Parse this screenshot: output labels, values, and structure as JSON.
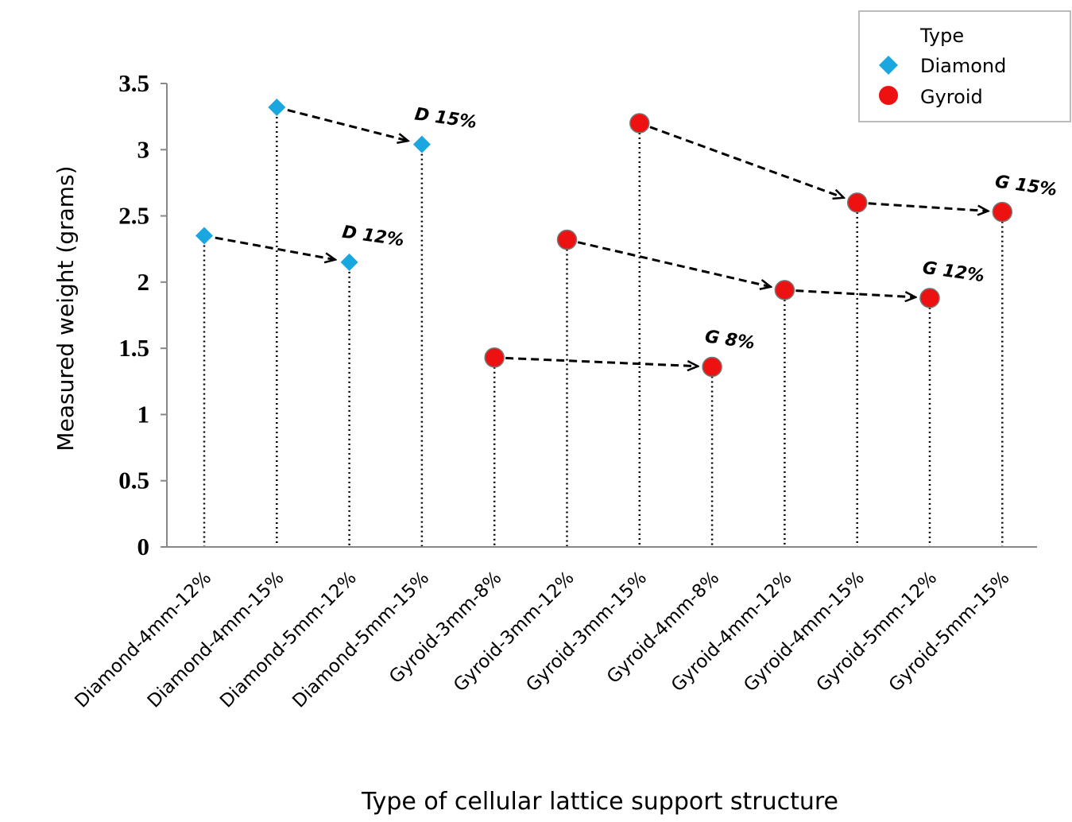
{
  "chart_data": {
    "type": "scatter",
    "title": "",
    "xlabel": "Type of cellular lattice support structure",
    "ylabel": "Measured weight (grams)",
    "ylim": [
      0,
      3.5
    ],
    "yticks": [
      "0",
      "0.5",
      "1",
      "1.5",
      "2",
      "2.5",
      "3",
      "3.5"
    ],
    "grid": false,
    "legend": {
      "title": "Type",
      "placement": "top-right"
    },
    "categories": [
      "Diamond-4mm-12%",
      "Diamond-4mm-15%",
      "Diamond-5mm-12%",
      "Diamond-5mm-15%",
      "Gyroid-3mm-8%",
      "Gyroid-3mm-12%",
      "Gyroid-3mm-15%",
      "Gyroid-4mm-8%",
      "Gyroid-4mm-12%",
      "Gyroid-4mm-15%",
      "Gyroid-5mm-12%",
      "Gyroid-5mm-15%"
    ],
    "series": [
      {
        "name": "Diamond",
        "color": "#1aa7e0",
        "marker": "diamond",
        "points": [
          {
            "x": "Diamond-4mm-12%",
            "y": 2.35
          },
          {
            "x": "Diamond-4mm-15%",
            "y": 3.32
          },
          {
            "x": "Diamond-5mm-12%",
            "y": 2.15
          },
          {
            "x": "Diamond-5mm-15%",
            "y": 3.04
          }
        ]
      },
      {
        "name": "Gyroid",
        "color": "#ee1111",
        "marker": "circle",
        "points": [
          {
            "x": "Gyroid-3mm-8%",
            "y": 1.43
          },
          {
            "x": "Gyroid-3mm-12%",
            "y": 2.32
          },
          {
            "x": "Gyroid-3mm-15%",
            "y": 3.2
          },
          {
            "x": "Gyroid-4mm-8%",
            "y": 1.36
          },
          {
            "x": "Gyroid-4mm-12%",
            "y": 1.94
          },
          {
            "x": "Gyroid-4mm-15%",
            "y": 2.6
          },
          {
            "x": "Gyroid-5mm-12%",
            "y": 1.88
          },
          {
            "x": "Gyroid-5mm-15%",
            "y": 2.53
          }
        ]
      }
    ],
    "arrows": [
      [
        "Diamond-4mm-12%",
        "Diamond-5mm-12%"
      ],
      [
        "Diamond-4mm-15%",
        "Diamond-5mm-15%"
      ],
      [
        "Gyroid-3mm-8%",
        "Gyroid-4mm-8%"
      ],
      [
        "Gyroid-3mm-12%",
        "Gyroid-4mm-12%"
      ],
      [
        "Gyroid-4mm-12%",
        "Gyroid-5mm-12%"
      ],
      [
        "Gyroid-3mm-15%",
        "Gyroid-4mm-15%"
      ],
      [
        "Gyroid-4mm-15%",
        "Gyroid-5mm-15%"
      ]
    ],
    "annotations": [
      {
        "text": "D 15%",
        "at": "Diamond-5mm-15%"
      },
      {
        "text": "D 12%",
        "at": "Diamond-5mm-12%"
      },
      {
        "text": "G 8%",
        "at": "Gyroid-4mm-8%"
      },
      {
        "text": "G 12%",
        "at": "Gyroid-5mm-12%"
      },
      {
        "text": "G 15%",
        "at": "Gyroid-5mm-15%"
      }
    ]
  }
}
